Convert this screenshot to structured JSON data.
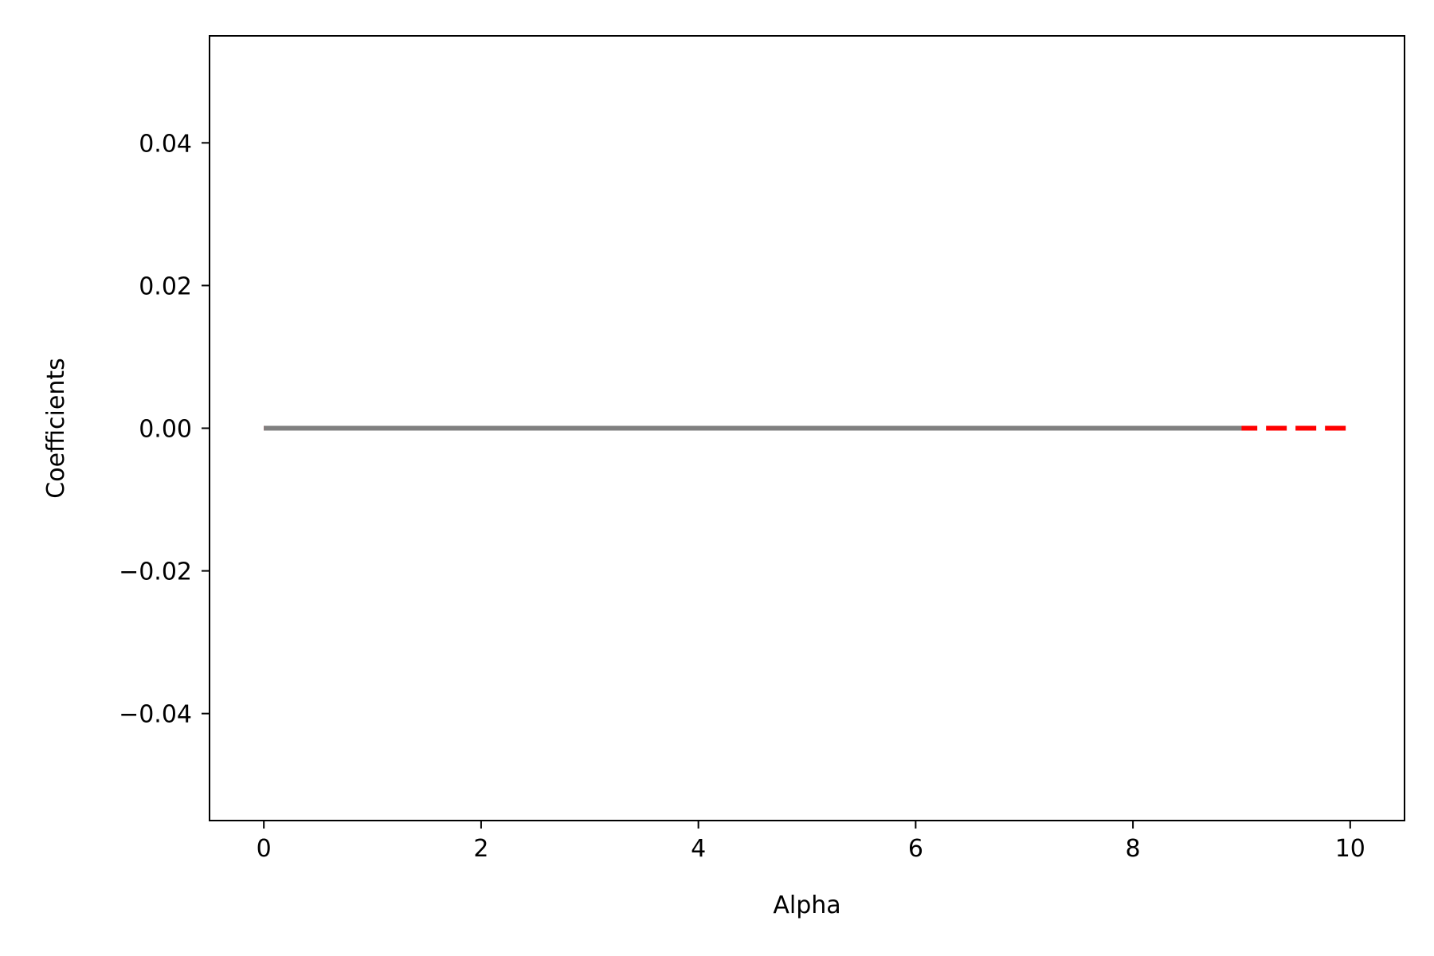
{
  "chart_data": {
    "type": "line",
    "title": "",
    "xlabel": "Alpha",
    "ylabel": "Coefficients",
    "xlim": [
      -0.5,
      10.5
    ],
    "ylim": [
      -0.055,
      0.055
    ],
    "x_ticks": [
      0,
      2,
      4,
      6,
      8,
      10
    ],
    "x_tick_labels": [
      "0",
      "2",
      "4",
      "6",
      "8",
      "10"
    ],
    "y_ticks": [
      -0.04,
      -0.02,
      0.0,
      0.02,
      0.04
    ],
    "y_tick_labels": [
      "−0.04",
      "−0.02",
      "0.00",
      "0.02",
      "0.04"
    ],
    "grid": false,
    "legend": "none",
    "series": [
      {
        "color": "#ff0000",
        "style": "dashed",
        "x": [
          0,
          10
        ],
        "y": [
          0.0,
          0.0
        ]
      },
      {
        "color": "#808080",
        "style": "solid",
        "x": [
          0,
          9
        ],
        "y": [
          0.0,
          0.0
        ]
      }
    ]
  }
}
